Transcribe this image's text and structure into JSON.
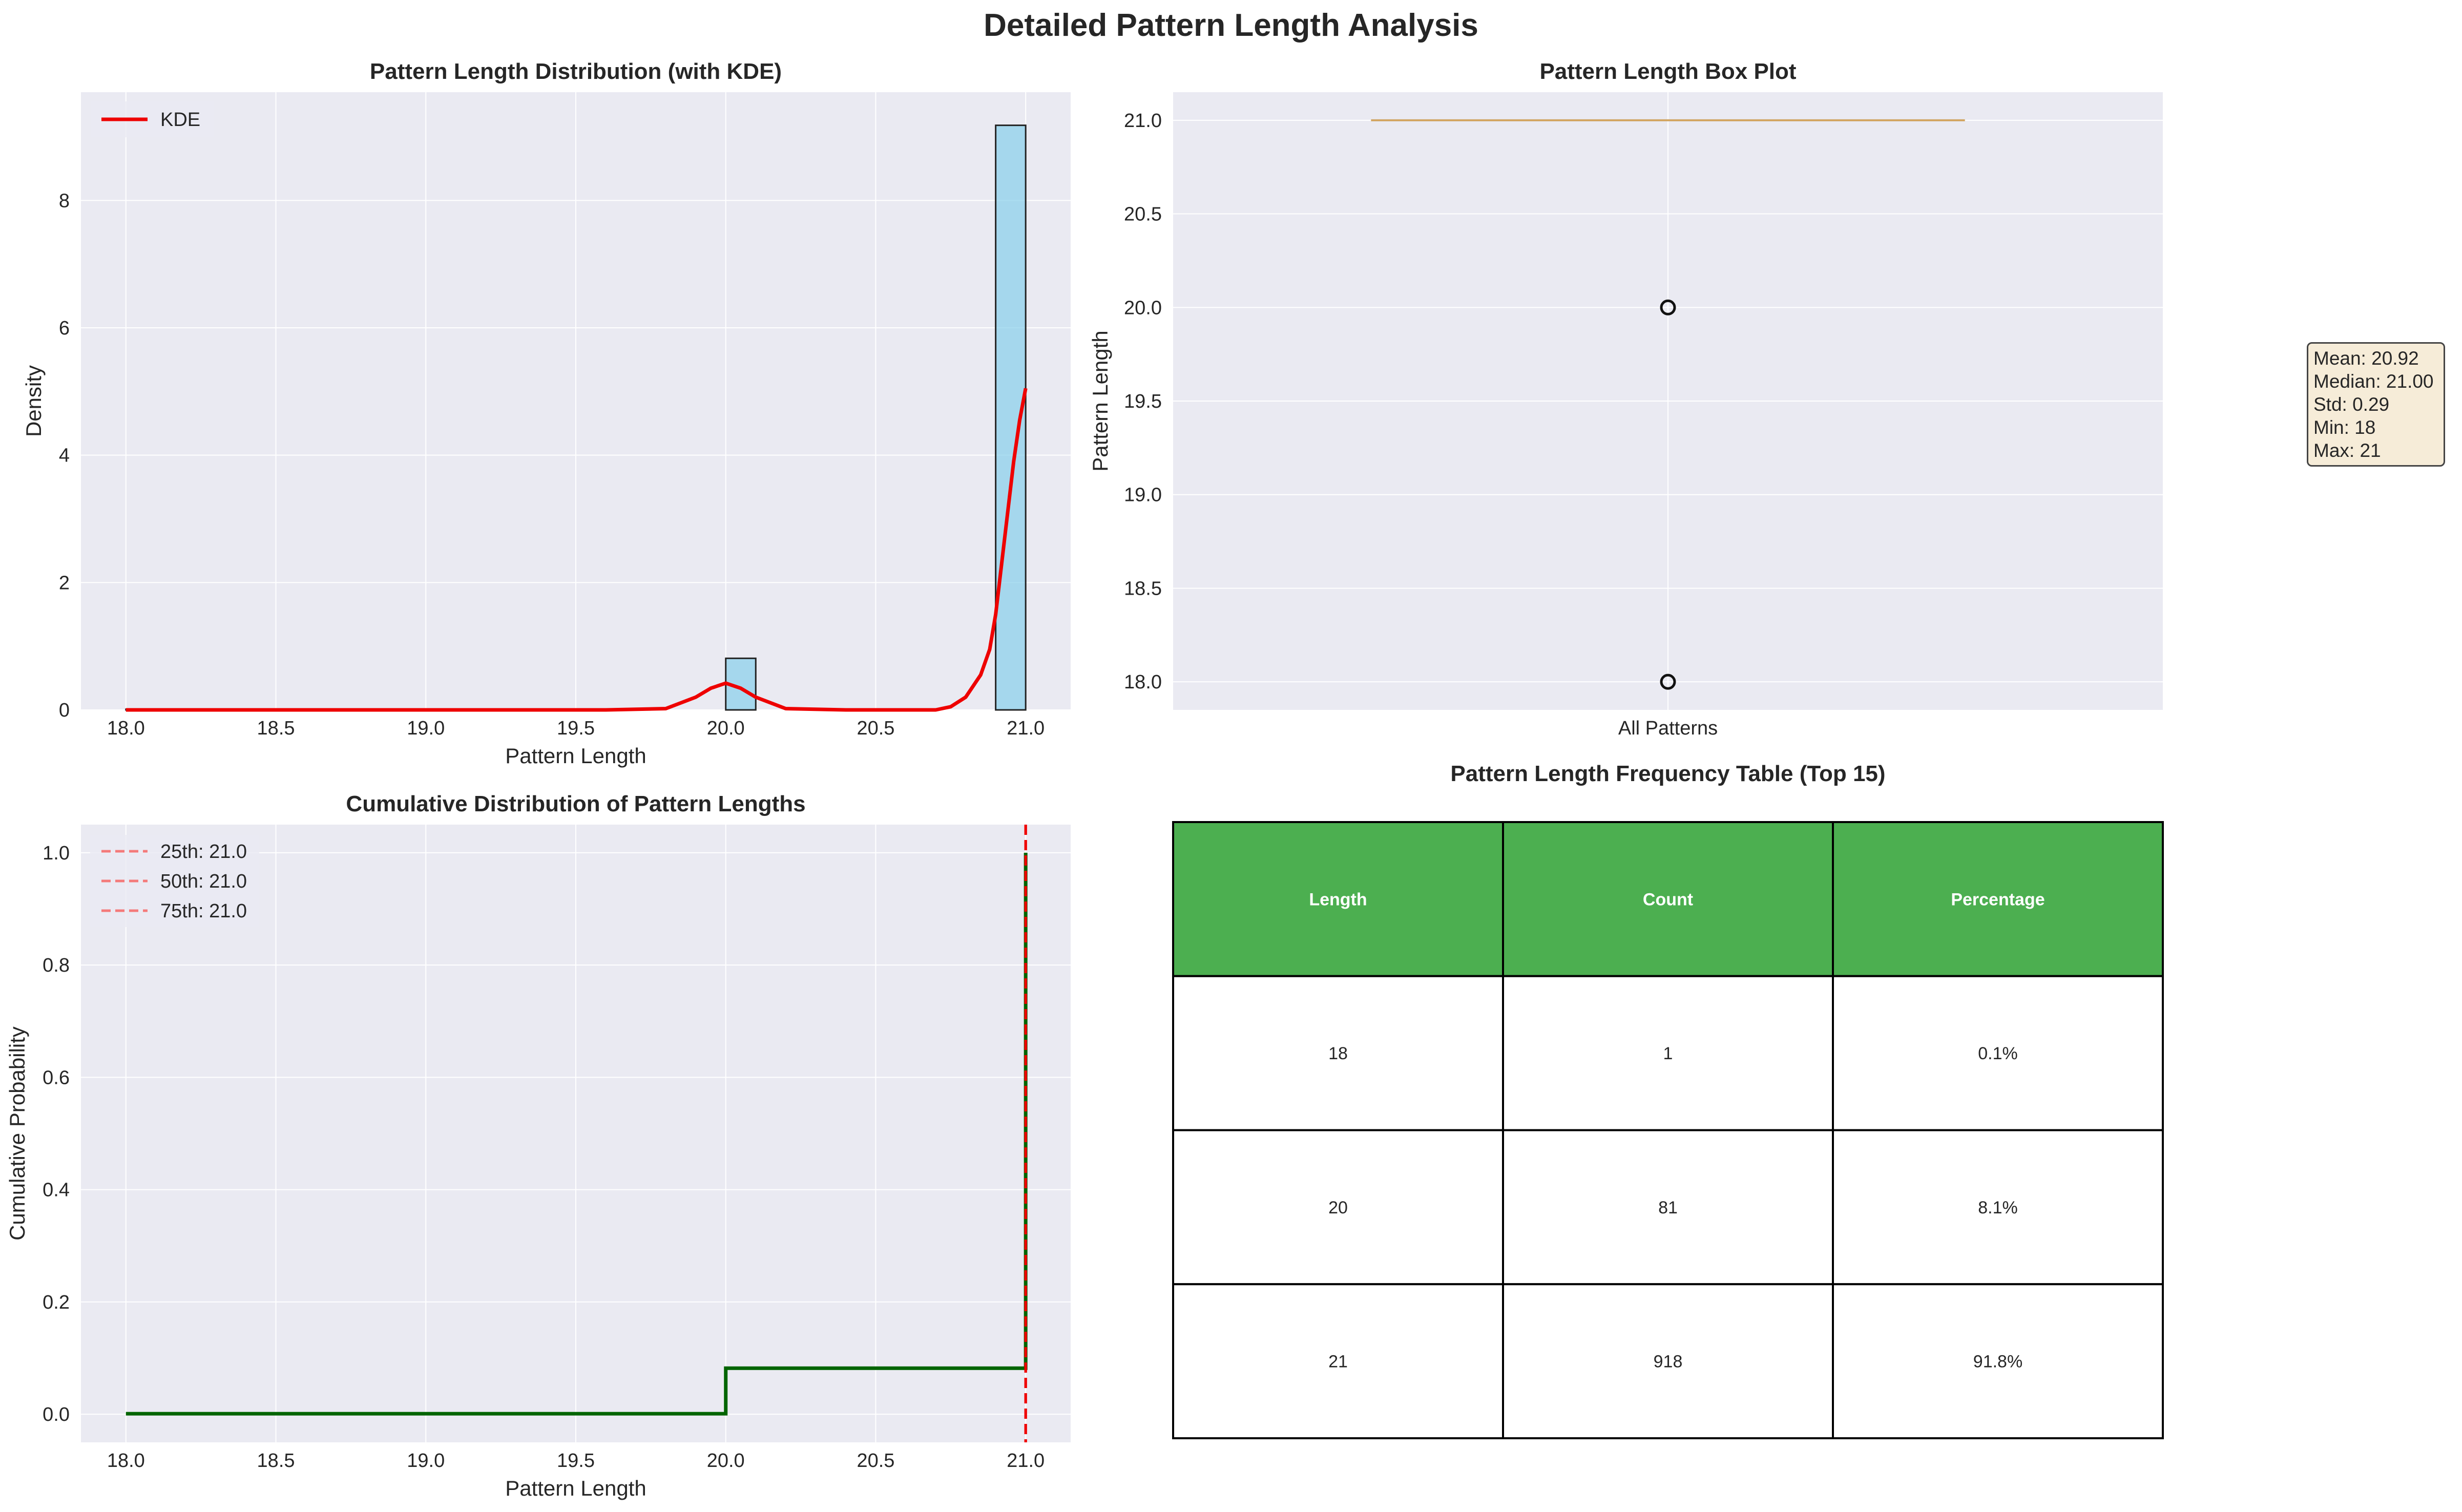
{
  "figure": {
    "title": "Detailed Pattern Length Analysis"
  },
  "chart_data": [
    {
      "type": "bar",
      "title": "Pattern Length Distribution (with KDE)",
      "xlabel": "Pattern Length",
      "ylabel": "Density",
      "xlim": [
        17.85,
        21.15
      ],
      "ylim": [
        0,
        9.7
      ],
      "xticks": [
        18.0,
        18.5,
        19.0,
        19.5,
        20.0,
        20.5,
        21.0
      ],
      "yticks": [
        0,
        2,
        4,
        6,
        8
      ],
      "grid": true,
      "legend": {
        "position": "top-left",
        "entries": [
          "KDE"
        ]
      },
      "histogram": [
        {
          "x0": 18.0,
          "x1": 18.1,
          "density": 0.01
        },
        {
          "x0": 20.0,
          "x1": 20.1,
          "density": 0.81
        },
        {
          "x0": 20.9,
          "x1": 21.0,
          "density": 9.18
        }
      ],
      "series": [
        {
          "name": "KDE",
          "x": [
            18.0,
            19.6,
            19.8,
            19.9,
            19.95,
            20.0,
            20.05,
            20.1,
            20.2,
            20.4,
            20.7,
            20.75,
            20.8,
            20.85,
            20.88,
            20.9,
            20.92,
            20.94,
            20.96,
            20.98,
            21.0
          ],
          "y": [
            0.0,
            0.0,
            0.02,
            0.2,
            0.34,
            0.42,
            0.34,
            0.2,
            0.02,
            0.0,
            0.0,
            0.05,
            0.2,
            0.55,
            0.95,
            1.5,
            2.3,
            3.1,
            3.9,
            4.55,
            5.05
          ]
        }
      ],
      "bar_color": "#87ceeb",
      "line_color": "#ee0000"
    },
    {
      "type": "box",
      "title": "Pattern Length Box Plot",
      "ylabel": "Pattern Length",
      "categories": [
        "All Patterns"
      ],
      "ylim": [
        17.85,
        21.15
      ],
      "yticks": [
        18.0,
        18.5,
        19.0,
        19.5,
        20.0,
        20.5,
        21.0
      ],
      "box": {
        "q1": 21.0,
        "median": 21.0,
        "q3": 21.0,
        "whisker_low": 21.0,
        "whisker_high": 21.0
      },
      "outliers": [
        20.0,
        18.0
      ],
      "stats_text": [
        "Mean: 20.92",
        "Median: 21.00",
        "Std: 0.29",
        "Min: 18",
        "Max: 21"
      ]
    },
    {
      "type": "line",
      "title": "Cumulative Distribution of Pattern Lengths",
      "xlabel": "Pattern Length",
      "ylabel": "Cumulative Probability",
      "xlim": [
        17.85,
        21.15
      ],
      "ylim": [
        -0.05,
        1.05
      ],
      "xticks": [
        18.0,
        18.5,
        19.0,
        19.5,
        20.0,
        20.5,
        21.0
      ],
      "yticks": [
        0.0,
        0.2,
        0.4,
        0.6,
        0.8,
        1.0
      ],
      "grid": true,
      "legend": {
        "position": "top-left",
        "entries": [
          "25th: 21.0",
          "50th: 21.0",
          "75th: 21.0"
        ]
      },
      "series": [
        {
          "name": "",
          "x": [
            18.0,
            20.0,
            20.0,
            21.0,
            21.0
          ],
          "y": [
            0.001,
            0.001,
            0.082,
            0.082,
            1.0
          ]
        }
      ],
      "percentile_lines": [
        21.0,
        21.0,
        21.0
      ],
      "line_color": "#006400",
      "percentile_color": "#ee0000"
    },
    {
      "type": "table",
      "title": "Pattern Length Frequency Table (Top 15)",
      "columns": [
        "Length",
        "Count",
        "Percentage"
      ],
      "rows": [
        [
          "18",
          "1",
          "0.1%"
        ],
        [
          "20",
          "81",
          "8.1%"
        ],
        [
          "21",
          "918",
          "91.8%"
        ]
      ],
      "header_color": "#4caf50"
    }
  ]
}
